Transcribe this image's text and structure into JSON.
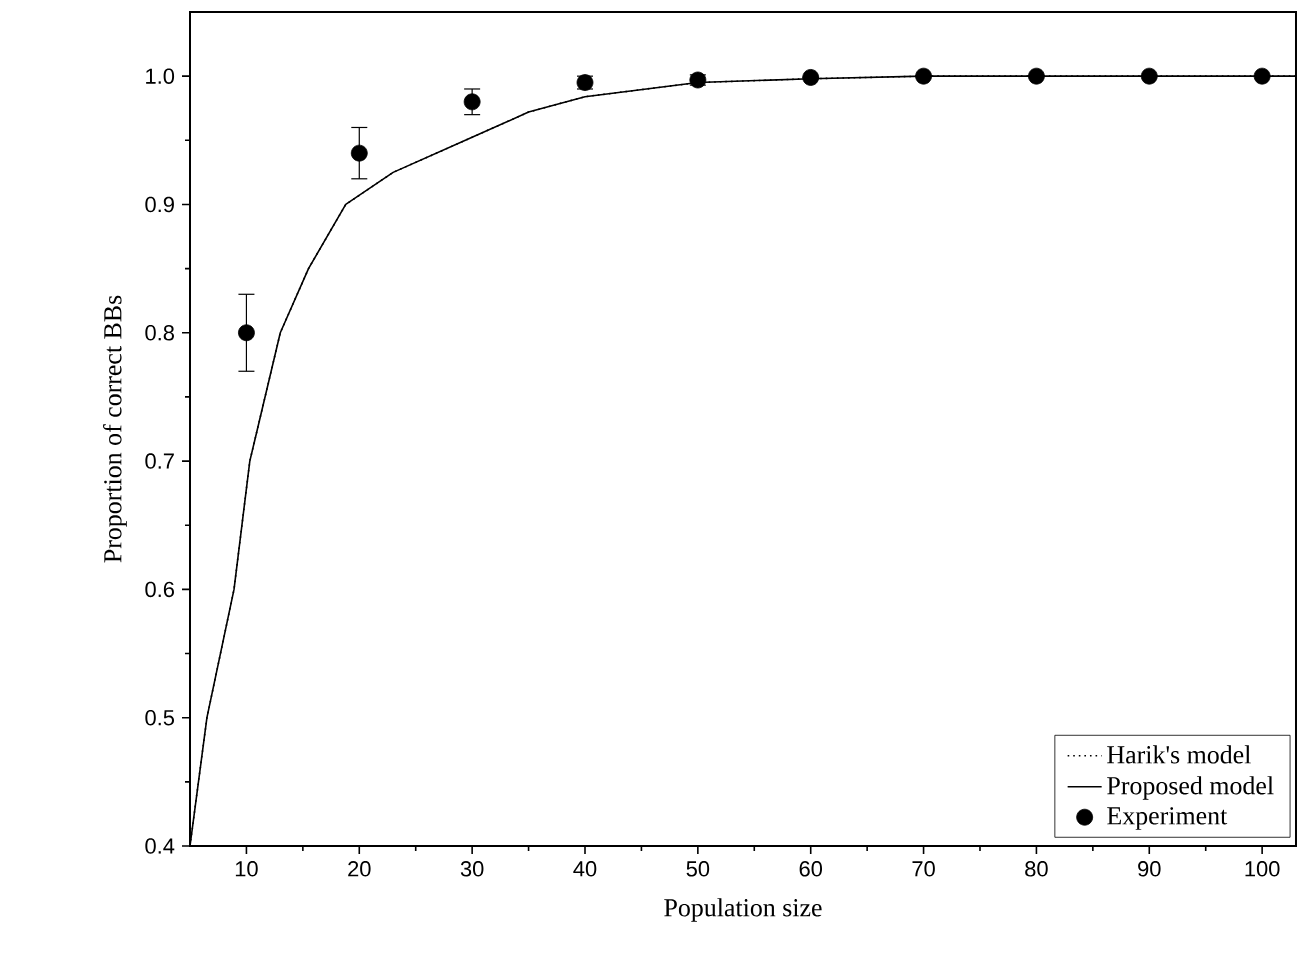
{
  "chart_data": {
    "type": "line",
    "xlabel": "Population size",
    "ylabel": "Proportion of correct BBs",
    "xlim": [
      5,
      103
    ],
    "ylim": [
      0.4,
      1.05
    ],
    "xticks": [
      10,
      20,
      30,
      40,
      50,
      60,
      70,
      80,
      90,
      100
    ],
    "yticks": [
      {
        "value": 0.4,
        "label": "0.4"
      },
      {
        "value": 0.5,
        "label": "0.5"
      },
      {
        "value": 0.6,
        "label": "0.6"
      },
      {
        "value": 0.7,
        "label": "0.7"
      },
      {
        "value": 0.8,
        "label": "0.8"
      },
      {
        "value": 0.9,
        "label": "0.9"
      },
      {
        "value": 1.0,
        "label": "1.0"
      }
    ],
    "legend": "bottom right",
    "grid": false,
    "series": [
      {
        "name": "Harik's model",
        "color": "#000000",
        "line_style": "dotted",
        "marker": "none",
        "x": [
          5,
          6.5,
          8.9,
          10.3,
          13,
          15.5,
          18.8,
          23,
          29.4,
          35,
          40,
          50,
          60,
          70,
          80,
          90,
          103
        ],
        "values": [
          0.4,
          0.5,
          0.6,
          0.7,
          0.8,
          0.85,
          0.9,
          0.925,
          0.95,
          0.972,
          0.984,
          0.995,
          0.998,
          1.0,
          1.0,
          1.0,
          1.0
        ]
      },
      {
        "name": "Proposed model",
        "color": "#000000",
        "line_style": "solid",
        "marker": "none",
        "x": [
          5,
          6.5,
          8.9,
          10.3,
          13,
          15.5,
          18.8,
          23,
          29.4,
          35,
          40,
          50,
          60,
          70,
          80,
          90,
          103
        ],
        "values": [
          0.4,
          0.5,
          0.6,
          0.7,
          0.8,
          0.85,
          0.9,
          0.925,
          0.95,
          0.972,
          0.984,
          0.995,
          0.998,
          1.0,
          1.0,
          1.0,
          1.0
        ]
      },
      {
        "name": "Experiment",
        "type": "scatter",
        "color": "#000000",
        "marker": "circle",
        "x": [
          10,
          20,
          30,
          40,
          50,
          60,
          70,
          80,
          90,
          100
        ],
        "values": [
          0.8,
          0.94,
          0.98,
          0.995,
          0.997,
          0.999,
          1.0,
          1.0,
          1.0,
          1.0
        ],
        "errors": [
          0.03,
          0.02,
          0.01,
          0.005,
          0.004,
          null,
          null,
          null,
          null,
          null
        ]
      }
    ]
  }
}
